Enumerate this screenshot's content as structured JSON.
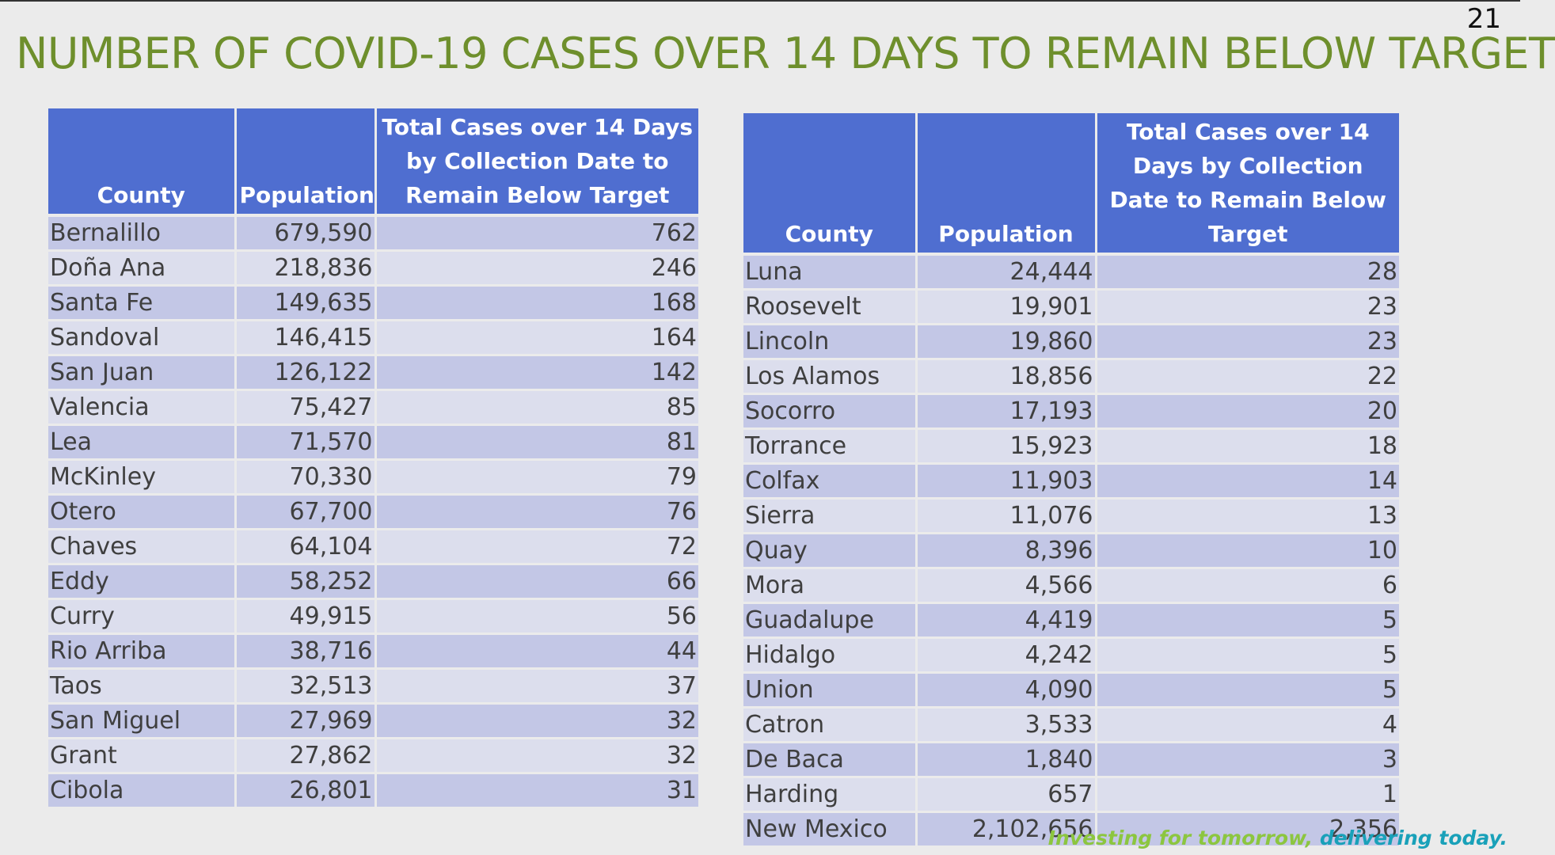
{
  "page_number": "21",
  "title": "NUMBER OF COVID-19 CASES OVER 14 DAYS TO REMAIN BELOW TARGET",
  "tables": [
    {
      "headers": [
        "County",
        "Population",
        "Total Cases over 14 Days by Collection Date to Remain Below Target"
      ],
      "rows": [
        [
          "Bernalillo",
          "679,590",
          "762"
        ],
        [
          "Doña Ana",
          "218,836",
          "246"
        ],
        [
          "Santa Fe",
          "149,635",
          "168"
        ],
        [
          "Sandoval",
          "146,415",
          "164"
        ],
        [
          "San Juan",
          "126,122",
          "142"
        ],
        [
          "Valencia",
          "75,427",
          "85"
        ],
        [
          "Lea",
          "71,570",
          "81"
        ],
        [
          "McKinley",
          "70,330",
          "79"
        ],
        [
          "Otero",
          "67,700",
          "76"
        ],
        [
          "Chaves",
          "64,104",
          "72"
        ],
        [
          "Eddy",
          "58,252",
          "66"
        ],
        [
          "Curry",
          "49,915",
          "56"
        ],
        [
          "Rio Arriba",
          "38,716",
          "44"
        ],
        [
          "Taos",
          "32,513",
          "37"
        ],
        [
          "San Miguel",
          "27,969",
          "32"
        ],
        [
          "Grant",
          "27,862",
          "32"
        ],
        [
          "Cibola",
          "26,801",
          "31"
        ]
      ]
    },
    {
      "headers": [
        "County",
        "Population",
        "Total Cases over 14 Days by Collection Date to Remain Below Target"
      ],
      "rows": [
        [
          "Luna",
          "24,444",
          "28"
        ],
        [
          "Roosevelt",
          "19,901",
          "23"
        ],
        [
          "Lincoln",
          "19,860",
          "23"
        ],
        [
          "Los Alamos",
          "18,856",
          "22"
        ],
        [
          "Socorro",
          "17,193",
          "20"
        ],
        [
          "Torrance",
          "15,923",
          "18"
        ],
        [
          "Colfax",
          "11,903",
          "14"
        ],
        [
          "Sierra",
          "11,076",
          "13"
        ],
        [
          "Quay",
          "8,396",
          "10"
        ],
        [
          "Mora",
          "4,566",
          "6"
        ],
        [
          "Guadalupe",
          "4,419",
          "5"
        ],
        [
          "Hidalgo",
          "4,242",
          "5"
        ],
        [
          "Union",
          "4,090",
          "5"
        ],
        [
          "Catron",
          "3,533",
          "4"
        ],
        [
          "De Baca",
          "1,840",
          "3"
        ],
        [
          "Harding",
          "657",
          "1"
        ],
        [
          "New Mexico",
          "2,102,656",
          "2,356"
        ]
      ]
    }
  ],
  "footer": {
    "part1": "Investing for tomorrow,",
    "part2": "delivering today."
  }
}
